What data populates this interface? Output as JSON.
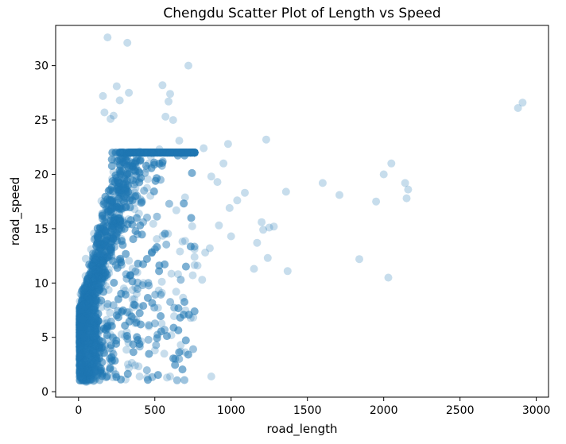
{
  "chart_data": {
    "type": "scatter",
    "title": "Chengdu Scatter Plot of Length vs Speed",
    "xlabel": "road_length",
    "ylabel": "road_speed",
    "xlim": [
      -150,
      3080
    ],
    "ylim": [
      -0.5,
      33.7
    ],
    "xticks": [
      0,
      500,
      1000,
      1500,
      2000,
      2500,
      3000
    ],
    "yticks": [
      0,
      5,
      10,
      15,
      20,
      25,
      30
    ],
    "grid": false,
    "marker_color": "#1f77b4",
    "marker_alpha": 0.25,
    "outliers": [
      [
        190,
        32.6
      ],
      [
        320,
        32.1
      ],
      [
        720,
        30.0
      ],
      [
        550,
        28.2
      ],
      [
        250,
        28.1
      ],
      [
        600,
        27.4
      ],
      [
        330,
        27.5
      ],
      [
        160,
        27.2
      ],
      [
        270,
        26.8
      ],
      [
        590,
        26.7
      ],
      [
        2880,
        26.1
      ],
      [
        2910,
        26.6
      ],
      [
        170,
        25.7
      ],
      [
        230,
        25.4
      ],
      [
        570,
        25.3
      ],
      [
        620,
        25.0
      ],
      [
        210,
        25.1
      ],
      [
        660,
        23.1
      ],
      [
        1230,
        23.2
      ],
      [
        980,
        22.8
      ],
      [
        820,
        22.4
      ],
      [
        530,
        22.3
      ],
      [
        400,
        22.1
      ],
      [
        460,
        21.0
      ],
      [
        2050,
        21.0
      ],
      [
        2000,
        20.0
      ],
      [
        1360,
        18.4
      ],
      [
        2140,
        19.2
      ],
      [
        2160,
        18.6
      ],
      [
        2150,
        17.8
      ],
      [
        1600,
        19.2
      ],
      [
        1710,
        18.1
      ],
      [
        1950,
        17.5
      ],
      [
        1840,
        12.2
      ],
      [
        2030,
        10.5
      ],
      [
        1370,
        11.1
      ],
      [
        1240,
        12.3
      ],
      [
        1150,
        11.3
      ],
      [
        1250,
        15.1
      ],
      [
        1200,
        15.6
      ],
      [
        1210,
        14.9
      ],
      [
        1280,
        15.2
      ],
      [
        1170,
        13.7
      ],
      [
        1090,
        18.3
      ],
      [
        1040,
        17.6
      ],
      [
        990,
        16.9
      ],
      [
        920,
        15.3
      ],
      [
        870,
        19.8
      ],
      [
        910,
        19.3
      ],
      [
        950,
        21.0
      ],
      [
        860,
        13.2
      ],
      [
        1000,
        14.3
      ],
      [
        830,
        12.8
      ],
      [
        780,
        11.6
      ],
      [
        810,
        10.3
      ],
      [
        870,
        1.4
      ],
      [
        670,
        4.3
      ],
      [
        600,
        1.4
      ],
      [
        580,
        1.3
      ],
      [
        450,
        1.3
      ],
      [
        330,
        2.2
      ],
      [
        400,
        1.4
      ],
      [
        500,
        3.8
      ],
      [
        640,
        9.2
      ],
      [
        760,
        12.4
      ]
    ]
  }
}
